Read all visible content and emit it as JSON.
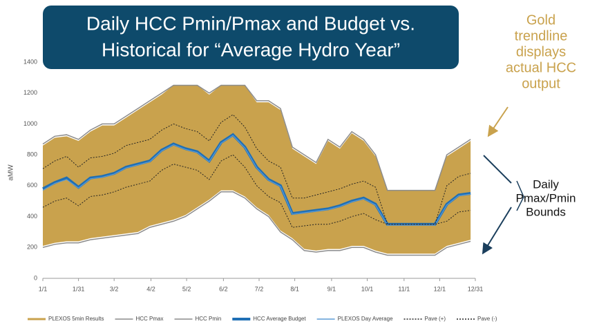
{
  "chart_data": {
    "type": "line",
    "title": [
      "Daily HCC Pmin/Pmax and Budget vs.",
      "Historical for “Average Hydro Year”"
    ],
    "y_label": "aMW",
    "annotations": [
      [
        "Gold",
        "trendline",
        "displays",
        "actual HCC",
        "output"
      ],
      [
        "Daily",
        "Pmax/Pmin",
        "Bounds"
      ]
    ],
    "x": [
      0,
      10,
      20,
      30,
      40,
      50,
      60,
      70,
      80,
      90,
      100,
      110,
      120,
      130,
      140,
      150,
      160,
      170,
      180,
      190,
      200,
      210,
      220,
      230,
      240,
      250,
      260,
      270,
      280,
      290,
      300,
      310,
      320,
      330,
      340,
      350,
      360
    ],
    "xlim": [
      0,
      364
    ],
    "xticks": [
      {
        "value": 0,
        "label": "1/1"
      },
      {
        "value": 30,
        "label": "1/31"
      },
      {
        "value": 60,
        "label": "3/2"
      },
      {
        "value": 91,
        "label": "4/2"
      },
      {
        "value": 121,
        "label": "5/2"
      },
      {
        "value": 152,
        "label": "6/2"
      },
      {
        "value": 182,
        "label": "7/2"
      },
      {
        "value": 212,
        "label": "8/1"
      },
      {
        "value": 243,
        "label": "9/1"
      },
      {
        "value": 273,
        "label": "10/1"
      },
      {
        "value": 304,
        "label": "11/1"
      },
      {
        "value": 334,
        "label": "12/1"
      },
      {
        "value": 364,
        "label": "12/31"
      }
    ],
    "ylim": [
      0,
      1400
    ],
    "yticks": [
      0,
      200,
      400,
      600,
      800,
      1000,
      1200,
      1400
    ],
    "series": [
      {
        "name": "PLEXOS 5min Results",
        "color": "#c9a24d",
        "band": true,
        "high": [
          860,
          910,
          920,
          890,
          950,
          990,
          990,
          1040,
          1090,
          1140,
          1190,
          1250,
          1250,
          1250,
          1190,
          1250,
          1250,
          1250,
          1140,
          1140,
          1090,
          840,
          790,
          740,
          890,
          840,
          940,
          890,
          790,
          570,
          570,
          570,
          570,
          570,
          790,
          840,
          890
        ],
        "low": [
          210,
          230,
          240,
          240,
          260,
          270,
          280,
          290,
          300,
          340,
          360,
          380,
          410,
          460,
          510,
          570,
          570,
          530,
          460,
          410,
          310,
          260,
          190,
          180,
          190,
          190,
          210,
          210,
          180,
          160,
          160,
          160,
          160,
          160,
          210,
          230,
          250
        ]
      },
      {
        "name": "HCC Pmax",
        "color": "#8c8c8c",
        "width": 1.5,
        "values": [
          870,
          920,
          930,
          900,
          960,
          1000,
          1000,
          1050,
          1100,
          1150,
          1200,
          1250,
          1250,
          1250,
          1200,
          1250,
          1250,
          1250,
          1150,
          1150,
          1100,
          850,
          800,
          750,
          900,
          850,
          950,
          900,
          800,
          570,
          570,
          570,
          570,
          570,
          800,
          850,
          900
        ]
      },
      {
        "name": "HCC Pmin",
        "color": "#8c8c8c",
        "width": 1.5,
        "values": [
          200,
          220,
          230,
          230,
          250,
          260,
          270,
          280,
          290,
          330,
          350,
          370,
          400,
          450,
          500,
          560,
          560,
          520,
          450,
          400,
          300,
          250,
          180,
          170,
          180,
          180,
          200,
          200,
          170,
          150,
          150,
          150,
          150,
          150,
          200,
          220,
          240
        ]
      },
      {
        "name": "HCC Average Budget",
        "color": "#1f6fb5",
        "width": 4,
        "values": [
          580,
          620,
          650,
          590,
          650,
          660,
          680,
          720,
          740,
          760,
          830,
          870,
          840,
          820,
          760,
          880,
          930,
          850,
          720,
          640,
          600,
          420,
          430,
          440,
          450,
          470,
          500,
          520,
          480,
          350,
          350,
          350,
          350,
          350,
          480,
          540,
          550
        ]
      },
      {
        "name": "PLEXOS Day Average",
        "color": "#5b9bd5",
        "width": 1.2,
        "values": [
          570,
          615,
          640,
          585,
          645,
          655,
          675,
          715,
          735,
          755,
          825,
          865,
          835,
          815,
          755,
          875,
          925,
          845,
          715,
          635,
          595,
          415,
          425,
          435,
          445,
          465,
          495,
          515,
          475,
          345,
          345,
          345,
          345,
          345,
          475,
          535,
          545
        ]
      },
      {
        "name": "Pave (+)",
        "color": "#222222",
        "width": 1,
        "dash": true,
        "values": [
          710,
          760,
          790,
          720,
          780,
          790,
          810,
          860,
          880,
          900,
          960,
          1000,
          970,
          950,
          890,
          1010,
          1060,
          980,
          840,
          760,
          720,
          520,
          520,
          540,
          560,
          580,
          610,
          630,
          590,
          350,
          350,
          350,
          350,
          350,
          600,
          660,
          680
        ]
      },
      {
        "name": "Pave (-)",
        "color": "#222222",
        "width": 1,
        "dash": true,
        "values": [
          460,
          500,
          520,
          470,
          530,
          540,
          560,
          590,
          610,
          630,
          700,
          740,
          720,
          700,
          640,
          760,
          800,
          720,
          600,
          530,
          490,
          330,
          340,
          350,
          350,
          370,
          400,
          420,
          380,
          350,
          350,
          350,
          350,
          350,
          370,
          430,
          440
        ]
      }
    ]
  }
}
